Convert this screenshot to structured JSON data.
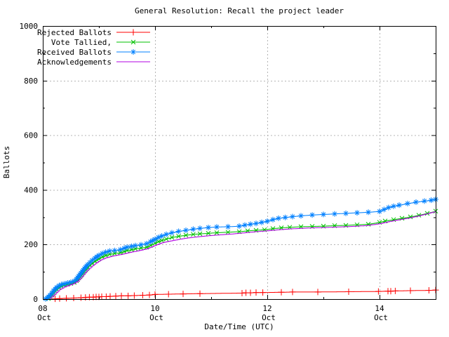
{
  "chart_data": {
    "type": "line",
    "title": "General Resolution: Recall the project leader",
    "xlabel": "Date/Time (UTC)",
    "ylabel": "Ballots",
    "background_color": "#ffffff",
    "border_color": "#000000",
    "grid": {
      "dashed": true,
      "color": "#b4b4b4"
    },
    "legend": {
      "position": "top-left",
      "box": false
    },
    "x_axis": {
      "unit": "days since Oct 08 00:00 UTC",
      "range": [
        0,
        7
      ],
      "major_ticks": [
        {
          "t": 0,
          "day": "08",
          "month": "Oct"
        },
        {
          "t": 2,
          "day": "10",
          "month": "Oct"
        },
        {
          "t": 4,
          "day": "12",
          "month": "Oct"
        },
        {
          "t": 6,
          "day": "14",
          "month": "Oct"
        }
      ],
      "minor_t": [
        1,
        3,
        5,
        7
      ]
    },
    "y_axis": {
      "range": [
        0,
        1000
      ],
      "major": [
        0,
        200,
        400,
        600,
        800,
        1000
      ],
      "minor": [
        100,
        300,
        500,
        700,
        900
      ]
    },
    "series": [
      {
        "name": "Rejected Ballots",
        "color": "#ff0000",
        "marker": "plus",
        "marker_mode": "points",
        "points": [
          [
            0.22,
            1
          ],
          [
            0.3,
            2
          ],
          [
            0.42,
            3
          ],
          [
            0.55,
            4
          ],
          [
            0.68,
            5
          ],
          [
            0.76,
            6
          ],
          [
            0.83,
            7
          ],
          [
            0.9,
            7
          ],
          [
            0.95,
            8
          ],
          [
            1.0,
            8
          ],
          [
            1.05,
            9
          ],
          [
            1.13,
            9
          ],
          [
            1.2,
            10
          ],
          [
            1.3,
            11
          ],
          [
            1.4,
            12
          ],
          [
            1.52,
            12
          ],
          [
            1.63,
            13
          ],
          [
            1.78,
            14
          ],
          [
            1.9,
            15
          ],
          [
            2.0,
            17
          ],
          [
            2.24,
            18
          ],
          [
            2.5,
            19
          ],
          [
            2.8,
            20
          ],
          [
            3.55,
            22
          ],
          [
            3.62,
            23
          ],
          [
            3.7,
            23
          ],
          [
            3.8,
            24
          ],
          [
            3.92,
            24
          ],
          [
            4.25,
            25
          ],
          [
            4.45,
            26
          ],
          [
            4.9,
            26
          ],
          [
            5.45,
            27
          ],
          [
            5.98,
            28
          ],
          [
            6.15,
            29
          ],
          [
            6.2,
            29
          ],
          [
            6.28,
            30
          ],
          [
            6.55,
            31
          ],
          [
            6.88,
            32
          ],
          [
            7.0,
            33
          ]
        ]
      },
      {
        "name": "Vote Tallied,",
        "color": "#00c000",
        "marker": "cross",
        "marker_mode": "dense",
        "points": [
          [
            0.1,
            2
          ],
          [
            0.13,
            8
          ],
          [
            0.16,
            15
          ],
          [
            0.19,
            23
          ],
          [
            0.22,
            30
          ],
          [
            0.25,
            36
          ],
          [
            0.29,
            42
          ],
          [
            0.33,
            47
          ],
          [
            0.38,
            51
          ],
          [
            0.44,
            54
          ],
          [
            0.5,
            57
          ],
          [
            0.56,
            61
          ],
          [
            0.6,
            67
          ],
          [
            0.64,
            77
          ],
          [
            0.68,
            87
          ],
          [
            0.72,
            97
          ],
          [
            0.76,
            107
          ],
          [
            0.8,
            116
          ],
          [
            0.84,
            124
          ],
          [
            0.88,
            131
          ],
          [
            0.93,
            139
          ],
          [
            1.0,
            148
          ],
          [
            1.06,
            155
          ],
          [
            1.12,
            160
          ],
          [
            1.19,
            164
          ],
          [
            1.28,
            167
          ],
          [
            1.38,
            170
          ],
          [
            1.45,
            174
          ],
          [
            1.5,
            178
          ],
          [
            1.58,
            181
          ],
          [
            1.65,
            184
          ],
          [
            1.75,
            187
          ],
          [
            1.85,
            190
          ],
          [
            1.92,
            197
          ],
          [
            2.0,
            205
          ],
          [
            2.06,
            211
          ],
          [
            2.12,
            215
          ],
          [
            2.2,
            220
          ],
          [
            2.3,
            226
          ],
          [
            2.42,
            230
          ],
          [
            2.55,
            234
          ],
          [
            2.68,
            237
          ],
          [
            2.8,
            239
          ],
          [
            2.95,
            241
          ],
          [
            3.1,
            243
          ],
          [
            3.3,
            245
          ],
          [
            3.5,
            247
          ],
          [
            3.65,
            250
          ],
          [
            3.8,
            252
          ],
          [
            3.95,
            254
          ],
          [
            4.1,
            258
          ],
          [
            4.25,
            261
          ],
          [
            4.4,
            263
          ],
          [
            4.6,
            265
          ],
          [
            4.8,
            266
          ],
          [
            5.0,
            267
          ],
          [
            5.2,
            269
          ],
          [
            5.4,
            270
          ],
          [
            5.6,
            272
          ],
          [
            5.8,
            274
          ],
          [
            6.0,
            281
          ],
          [
            6.1,
            286
          ],
          [
            6.25,
            291
          ],
          [
            6.4,
            296
          ],
          [
            6.55,
            301
          ],
          [
            6.7,
            307
          ],
          [
            6.85,
            314
          ],
          [
            7.0,
            322
          ]
        ]
      },
      {
        "name": "Received Ballots",
        "color": "#0080ff",
        "marker": "star",
        "marker_mode": "dense",
        "points": [
          [
            0.05,
            1
          ],
          [
            0.08,
            4
          ],
          [
            0.1,
            8
          ],
          [
            0.13,
            14
          ],
          [
            0.16,
            22
          ],
          [
            0.19,
            30
          ],
          [
            0.22,
            37
          ],
          [
            0.25,
            43
          ],
          [
            0.29,
            49
          ],
          [
            0.33,
            53
          ],
          [
            0.38,
            56
          ],
          [
            0.44,
            59
          ],
          [
            0.5,
            62
          ],
          [
            0.56,
            66
          ],
          [
            0.6,
            73
          ],
          [
            0.64,
            84
          ],
          [
            0.68,
            95
          ],
          [
            0.72,
            106
          ],
          [
            0.76,
            117
          ],
          [
            0.8,
            126
          ],
          [
            0.84,
            134
          ],
          [
            0.88,
            142
          ],
          [
            0.93,
            150
          ],
          [
            1.0,
            160
          ],
          [
            1.06,
            167
          ],
          [
            1.12,
            172
          ],
          [
            1.19,
            176
          ],
          [
            1.28,
            178
          ],
          [
            1.38,
            181
          ],
          [
            1.45,
            186
          ],
          [
            1.5,
            190
          ],
          [
            1.58,
            193
          ],
          [
            1.65,
            196
          ],
          [
            1.75,
            199
          ],
          [
            1.85,
            203
          ],
          [
            1.92,
            210
          ],
          [
            2.0,
            219
          ],
          [
            2.06,
            226
          ],
          [
            2.12,
            231
          ],
          [
            2.2,
            237
          ],
          [
            2.3,
            243
          ],
          [
            2.42,
            248
          ],
          [
            2.55,
            252
          ],
          [
            2.68,
            256
          ],
          [
            2.8,
            259
          ],
          [
            2.95,
            262
          ],
          [
            3.1,
            264
          ],
          [
            3.3,
            265
          ],
          [
            3.5,
            267
          ],
          [
            3.6,
            271
          ],
          [
            3.7,
            274
          ],
          [
            3.8,
            277
          ],
          [
            3.9,
            281
          ],
          [
            4.0,
            285
          ],
          [
            4.1,
            291
          ],
          [
            4.2,
            296
          ],
          [
            4.32,
            299
          ],
          [
            4.45,
            302
          ],
          [
            4.6,
            305
          ],
          [
            4.8,
            308
          ],
          [
            5.0,
            310
          ],
          [
            5.2,
            312
          ],
          [
            5.4,
            314
          ],
          [
            5.6,
            316
          ],
          [
            5.8,
            318
          ],
          [
            6.0,
            321
          ],
          [
            6.08,
            328
          ],
          [
            6.16,
            335
          ],
          [
            6.25,
            340
          ],
          [
            6.35,
            344
          ],
          [
            6.5,
            350
          ],
          [
            6.65,
            355
          ],
          [
            6.8,
            359
          ],
          [
            6.92,
            362
          ],
          [
            7.0,
            365
          ]
        ]
      },
      {
        "name": "Acknowledgements",
        "color": "#b000e0",
        "marker": "none",
        "marker_mode": "none",
        "points": [
          [
            0.12,
            2
          ],
          [
            0.18,
            12
          ],
          [
            0.24,
            24
          ],
          [
            0.3,
            35
          ],
          [
            0.38,
            44
          ],
          [
            0.46,
            50
          ],
          [
            0.54,
            56
          ],
          [
            0.62,
            65
          ],
          [
            0.7,
            83
          ],
          [
            0.78,
            103
          ],
          [
            0.86,
            118
          ],
          [
            0.94,
            131
          ],
          [
            1.02,
            142
          ],
          [
            1.12,
            151
          ],
          [
            1.25,
            158
          ],
          [
            1.4,
            164
          ],
          [
            1.55,
            171
          ],
          [
            1.7,
            177
          ],
          [
            1.85,
            184
          ],
          [
            2.0,
            197
          ],
          [
            2.12,
            206
          ],
          [
            2.25,
            212
          ],
          [
            2.4,
            218
          ],
          [
            2.55,
            223
          ],
          [
            2.7,
            227
          ],
          [
            2.85,
            230
          ],
          [
            3.0,
            233
          ],
          [
            3.2,
            236
          ],
          [
            3.4,
            239
          ],
          [
            3.6,
            243
          ],
          [
            3.8,
            247
          ],
          [
            4.0,
            250
          ],
          [
            4.2,
            254
          ],
          [
            4.4,
            257
          ],
          [
            4.6,
            259
          ],
          [
            4.8,
            261
          ],
          [
            5.0,
            262
          ],
          [
            5.25,
            264
          ],
          [
            5.5,
            266
          ],
          [
            5.75,
            269
          ],
          [
            6.0,
            276
          ],
          [
            6.15,
            283
          ],
          [
            6.3,
            289
          ],
          [
            6.5,
            296
          ],
          [
            6.7,
            305
          ],
          [
            6.85,
            313
          ],
          [
            7.0,
            321
          ]
        ]
      }
    ]
  }
}
